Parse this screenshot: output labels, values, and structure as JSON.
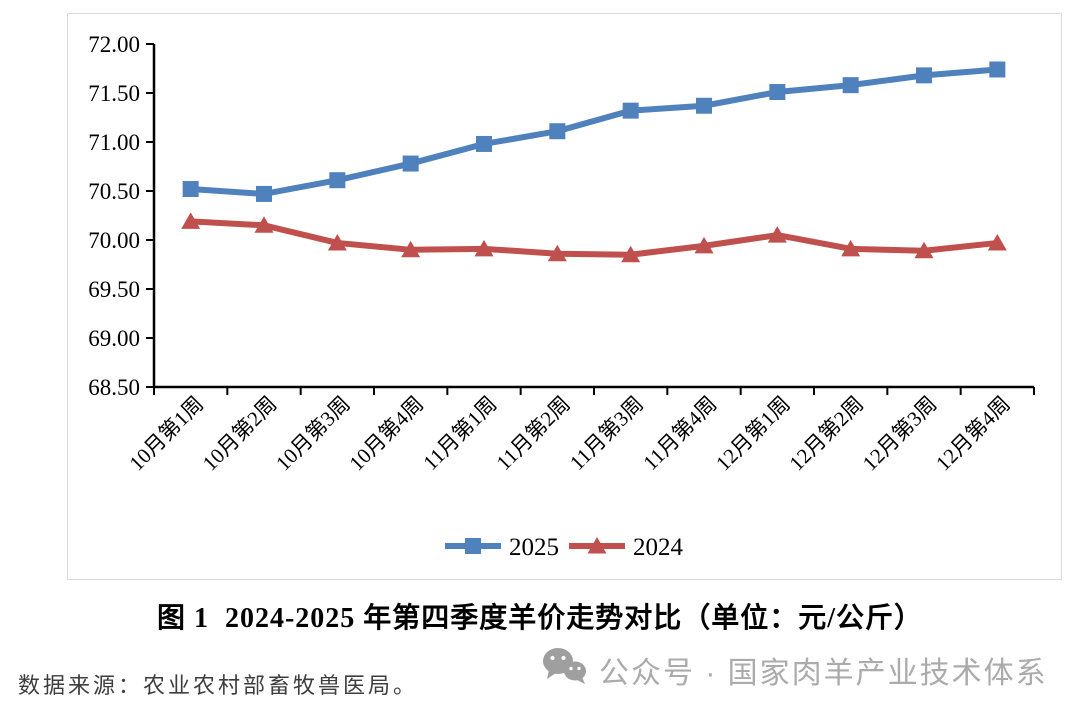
{
  "chart_data": {
    "type": "line",
    "title": "2024-2025 年第四季度羊价走势对比（单位：元/公斤）",
    "categories": [
      "10月第1周",
      "10月第2周",
      "10月第3周",
      "10月第4周",
      "11月第1周",
      "11月第2周",
      "11月第3周",
      "11月第4周",
      "12月第1周",
      "12月第2周",
      "12月第3周",
      "12月第4周"
    ],
    "series": [
      {
        "name": "2025",
        "color": "#4f81bd",
        "marker": "square",
        "values": [
          70.52,
          70.47,
          70.61,
          70.78,
          70.98,
          71.11,
          71.32,
          71.37,
          71.51,
          71.58,
          71.68,
          71.74
        ]
      },
      {
        "name": "2024",
        "color": "#c0504d",
        "marker": "triangle",
        "values": [
          70.19,
          70.15,
          69.97,
          69.9,
          69.91,
          69.86,
          69.85,
          69.94,
          70.05,
          69.91,
          69.89,
          69.97
        ]
      }
    ],
    "ylim": [
      68.5,
      72.0
    ],
    "ytick_step": 0.5,
    "y_tick_labels": [
      "68.50",
      "69.00",
      "69.50",
      "70.00",
      "70.50",
      "71.00",
      "71.50",
      "72.00"
    ],
    "xlabel": "",
    "ylabel": "",
    "grid": false,
    "legend_position": "bottom",
    "x_label_rotation_deg": 45
  },
  "figure": {
    "caption_label": "图 1",
    "caption_text": "2024-2025 年第四季度羊价走势对比（单位：元/公斤）"
  },
  "footer": {
    "source_text": "数据来源：农业农村部畜牧兽医局。",
    "watermark_icon": "wechat-icon",
    "watermark_text": "公众号 · 国家肉羊产业技术体系"
  },
  "colors": {
    "series_2025": "#4f81bd",
    "series_2024": "#c0504d",
    "axis": "#000000",
    "frame_border": "#d9d9d9",
    "watermark": "#ababab",
    "source_text": "#3d3d3d"
  }
}
